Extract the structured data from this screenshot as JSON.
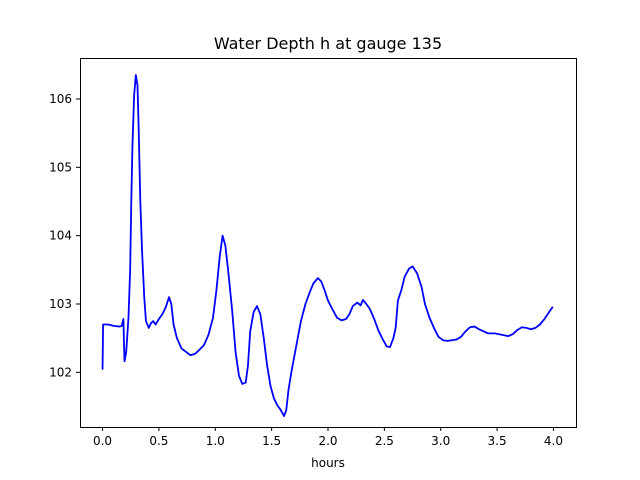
{
  "chart_data": {
    "type": "line",
    "title": "Water Depth h at gauge 135",
    "xlabel": "hours",
    "ylabel": "",
    "xlim": [
      -0.2,
      4.2
    ],
    "ylim": [
      101.2,
      106.6
    ],
    "grid": false,
    "legend": "none",
    "x_ticks": [
      {
        "value": 0.0,
        "label": "0.0"
      },
      {
        "value": 0.5,
        "label": "0.5"
      },
      {
        "value": 1.0,
        "label": "1.0"
      },
      {
        "value": 1.5,
        "label": "1.5"
      },
      {
        "value": 2.0,
        "label": "2.0"
      },
      {
        "value": 2.5,
        "label": "2.5"
      },
      {
        "value": 3.0,
        "label": "3.0"
      },
      {
        "value": 3.5,
        "label": "3.5"
      },
      {
        "value": 4.0,
        "label": "4.0"
      }
    ],
    "y_ticks": [
      {
        "value": 102,
        "label": "102"
      },
      {
        "value": 103,
        "label": "103"
      },
      {
        "value": 104,
        "label": "104"
      },
      {
        "value": 105,
        "label": "105"
      },
      {
        "value": 106,
        "label": "106"
      }
    ],
    "series": [
      {
        "color": "#0000ff",
        "points": [
          [
            0.0,
            102.05
          ],
          [
            0.005,
            102.7
          ],
          [
            0.05,
            102.7
          ],
          [
            0.1,
            102.68
          ],
          [
            0.15,
            102.67
          ],
          [
            0.17,
            102.68
          ],
          [
            0.185,
            102.78
          ],
          [
            0.19,
            102.45
          ],
          [
            0.195,
            102.16
          ],
          [
            0.21,
            102.3
          ],
          [
            0.23,
            102.8
          ],
          [
            0.245,
            103.5
          ],
          [
            0.255,
            104.5
          ],
          [
            0.265,
            105.3
          ],
          [
            0.28,
            106.05
          ],
          [
            0.295,
            106.35
          ],
          [
            0.31,
            106.2
          ],
          [
            0.32,
            105.6
          ],
          [
            0.335,
            104.5
          ],
          [
            0.35,
            103.8
          ],
          [
            0.37,
            103.1
          ],
          [
            0.385,
            102.75
          ],
          [
            0.41,
            102.65
          ],
          [
            0.43,
            102.72
          ],
          [
            0.45,
            102.75
          ],
          [
            0.47,
            102.7
          ],
          [
            0.5,
            102.78
          ],
          [
            0.53,
            102.85
          ],
          [
            0.56,
            102.95
          ],
          [
            0.59,
            103.1
          ],
          [
            0.61,
            103.0
          ],
          [
            0.63,
            102.7
          ],
          [
            0.66,
            102.5
          ],
          [
            0.7,
            102.35
          ],
          [
            0.74,
            102.3
          ],
          [
            0.78,
            102.25
          ],
          [
            0.82,
            102.27
          ],
          [
            0.86,
            102.33
          ],
          [
            0.9,
            102.4
          ],
          [
            0.94,
            102.55
          ],
          [
            0.98,
            102.8
          ],
          [
            1.01,
            103.2
          ],
          [
            1.04,
            103.7
          ],
          [
            1.065,
            104.0
          ],
          [
            1.09,
            103.85
          ],
          [
            1.12,
            103.4
          ],
          [
            1.15,
            102.9
          ],
          [
            1.18,
            102.3
          ],
          [
            1.21,
            101.95
          ],
          [
            1.24,
            101.83
          ],
          [
            1.27,
            101.85
          ],
          [
            1.29,
            102.1
          ],
          [
            1.31,
            102.6
          ],
          [
            1.34,
            102.88
          ],
          [
            1.37,
            102.97
          ],
          [
            1.4,
            102.85
          ],
          [
            1.43,
            102.5
          ],
          [
            1.46,
            102.1
          ],
          [
            1.49,
            101.8
          ],
          [
            1.52,
            101.62
          ],
          [
            1.55,
            101.52
          ],
          [
            1.58,
            101.45
          ],
          [
            1.61,
            101.36
          ],
          [
            1.63,
            101.45
          ],
          [
            1.65,
            101.75
          ],
          [
            1.68,
            102.05
          ],
          [
            1.72,
            102.4
          ],
          [
            1.76,
            102.75
          ],
          [
            1.8,
            103.0
          ],
          [
            1.84,
            103.18
          ],
          [
            1.87,
            103.3
          ],
          [
            1.91,
            103.38
          ],
          [
            1.94,
            103.33
          ],
          [
            1.97,
            103.2
          ],
          [
            2.0,
            103.05
          ],
          [
            2.04,
            102.92
          ],
          [
            2.08,
            102.8
          ],
          [
            2.12,
            102.76
          ],
          [
            2.16,
            102.78
          ],
          [
            2.19,
            102.85
          ],
          [
            2.22,
            102.97
          ],
          [
            2.26,
            103.02
          ],
          [
            2.29,
            102.98
          ],
          [
            2.31,
            103.06
          ],
          [
            2.34,
            103.0
          ],
          [
            2.37,
            102.93
          ],
          [
            2.41,
            102.78
          ],
          [
            2.45,
            102.6
          ],
          [
            2.49,
            102.47
          ],
          [
            2.52,
            102.38
          ],
          [
            2.55,
            102.37
          ],
          [
            2.58,
            102.5
          ],
          [
            2.6,
            102.65
          ],
          [
            2.62,
            103.05
          ],
          [
            2.65,
            103.2
          ],
          [
            2.68,
            103.4
          ],
          [
            2.72,
            103.52
          ],
          [
            2.75,
            103.55
          ],
          [
            2.79,
            103.45
          ],
          [
            2.83,
            103.25
          ],
          [
            2.86,
            103.0
          ],
          [
            2.9,
            102.8
          ],
          [
            2.94,
            102.65
          ],
          [
            2.98,
            102.52
          ],
          [
            3.02,
            102.47
          ],
          [
            3.06,
            102.46
          ],
          [
            3.1,
            102.47
          ],
          [
            3.14,
            102.48
          ],
          [
            3.18,
            102.52
          ],
          [
            3.22,
            102.6
          ],
          [
            3.26,
            102.66
          ],
          [
            3.3,
            102.67
          ],
          [
            3.34,
            102.63
          ],
          [
            3.38,
            102.6
          ],
          [
            3.42,
            102.57
          ],
          [
            3.48,
            102.57
          ],
          [
            3.54,
            102.55
          ],
          [
            3.6,
            102.53
          ],
          [
            3.64,
            102.56
          ],
          [
            3.68,
            102.62
          ],
          [
            3.72,
            102.66
          ],
          [
            3.76,
            102.65
          ],
          [
            3.8,
            102.63
          ],
          [
            3.84,
            102.65
          ],
          [
            3.88,
            102.7
          ],
          [
            3.92,
            102.78
          ],
          [
            3.96,
            102.88
          ],
          [
            3.99,
            102.95
          ]
        ]
      }
    ]
  }
}
